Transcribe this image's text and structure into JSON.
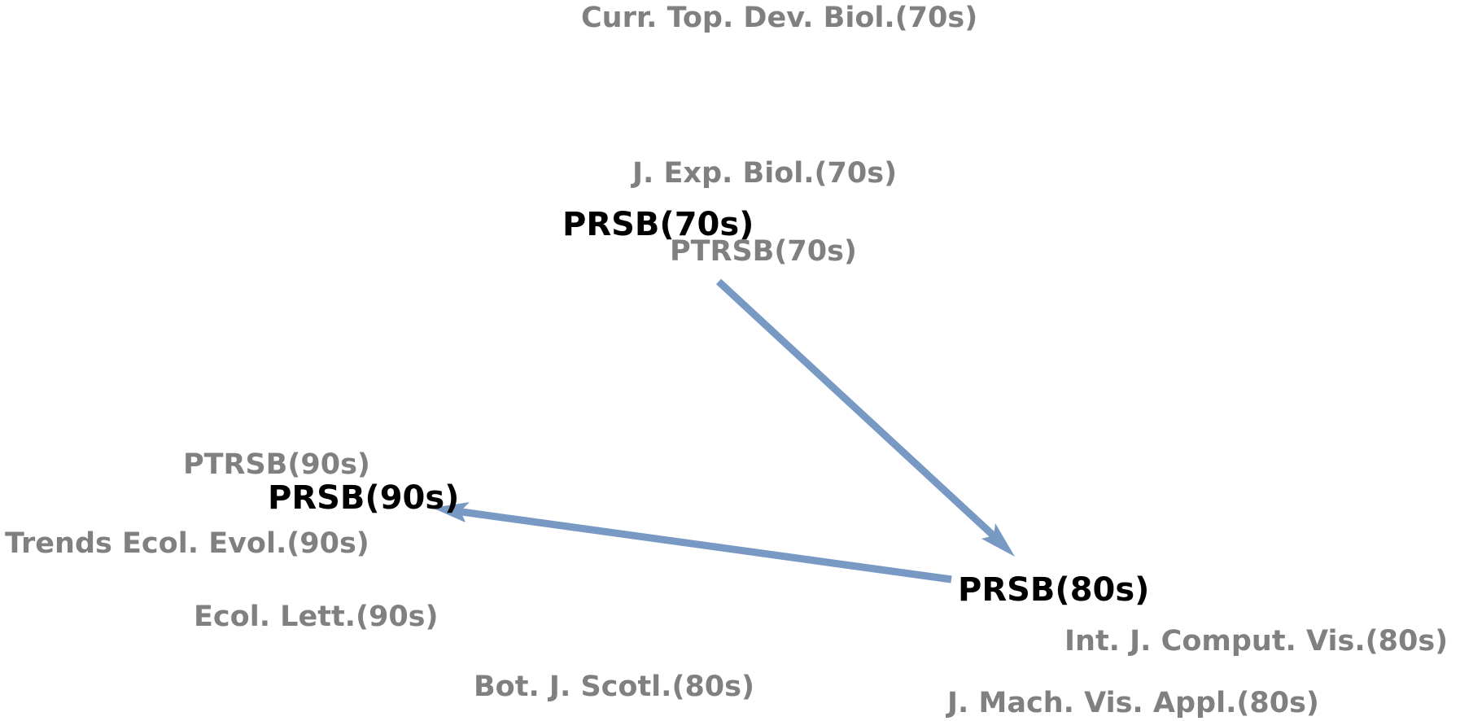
{
  "colors": {
    "main_label": "#000000",
    "context_label": "#808080",
    "edge": "#7799c4"
  },
  "nodes": {
    "prsb_70s": "PRSB(70s)",
    "prsb_80s": "PRSB(80s)",
    "prsb_90s": "PRSB(90s)"
  },
  "context": {
    "curr_top_dev_biol_70s": "Curr. Top. Dev. Biol.(70s)",
    "j_exp_biol_70s": "J. Exp. Biol.(70s)",
    "ptrsb_70s": "PTRSB(70s)",
    "ptrsb_90s": "PTRSB(90s)",
    "trends_ecol_evol_90s": "Trends Ecol. Evol.(90s)",
    "ecol_lett_90s": "Ecol. Lett.(90s)",
    "bot_j_scotl_80s": "Bot. J. Scotl.(80s)",
    "int_j_comput_vis_80s": "Int. J. Comput. Vis.(80s)",
    "j_mach_vis_appl_80s": "J. Mach. Vis. Appl.(80s)"
  },
  "edges": [
    {
      "from": "PRSB(70s)",
      "to": "PRSB(80s)"
    },
    {
      "from": "PRSB(80s)",
      "to": "PRSB(90s)"
    }
  ]
}
